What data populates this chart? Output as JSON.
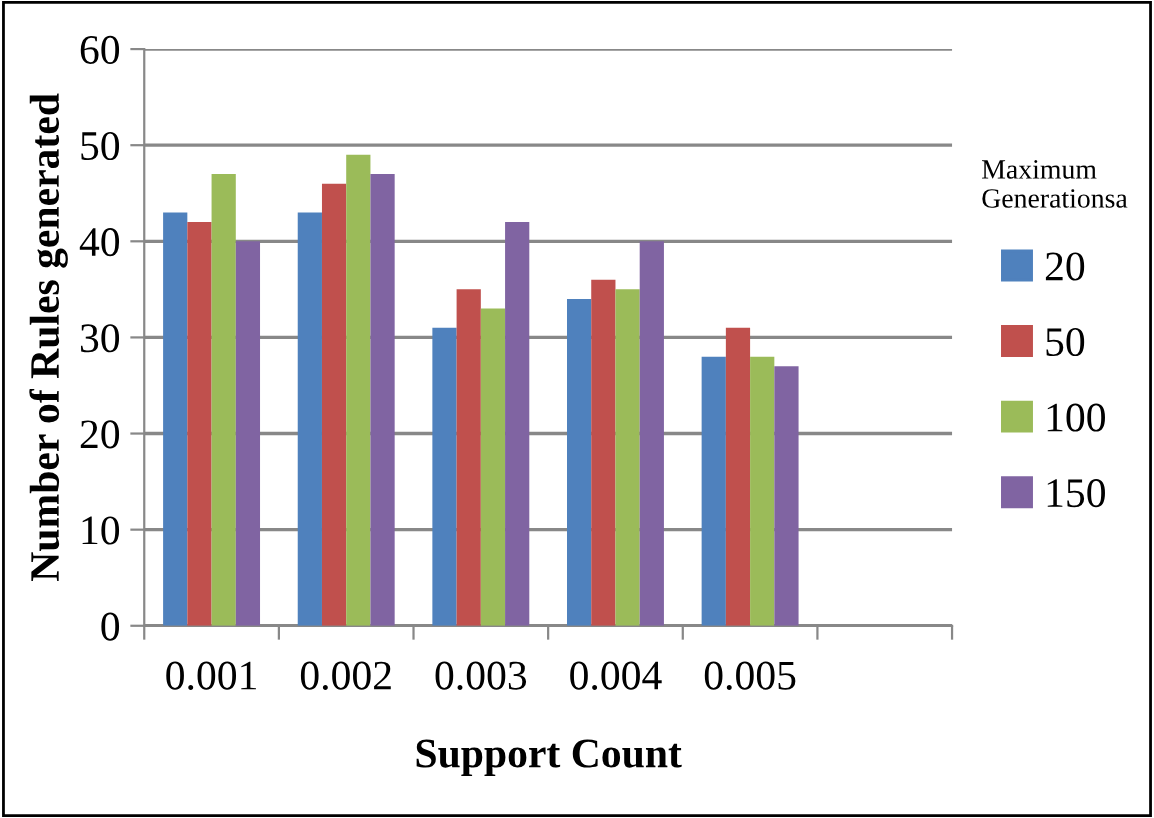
{
  "chart_data": {
    "type": "bar",
    "xlabel": "Support Count",
    "ylabel": "Number of Rules generated",
    "legend_title": "Maximum\nGenerationsa",
    "categories": [
      "0.001",
      "0.002",
      "0.003",
      "0.004",
      "0.005",
      null
    ],
    "series": [
      {
        "name": "20",
        "color": "#4f81bd",
        "values": [
          43,
          43,
          31,
          34,
          28,
          null
        ]
      },
      {
        "name": "50",
        "color": "#c0504d",
        "values": [
          42,
          46,
          35,
          36,
          31,
          null
        ]
      },
      {
        "name": "100",
        "color": "#9bbb59",
        "values": [
          47,
          49,
          33,
          35,
          28,
          null
        ]
      },
      {
        "name": "150",
        "color": "#8064a2",
        "values": [
          40,
          47,
          42,
          40,
          27,
          null
        ]
      }
    ],
    "ylim": [
      0,
      60
    ],
    "yticks": [
      0,
      10,
      20,
      30,
      40,
      50,
      60
    ],
    "grid": "y",
    "legend": "right"
  }
}
